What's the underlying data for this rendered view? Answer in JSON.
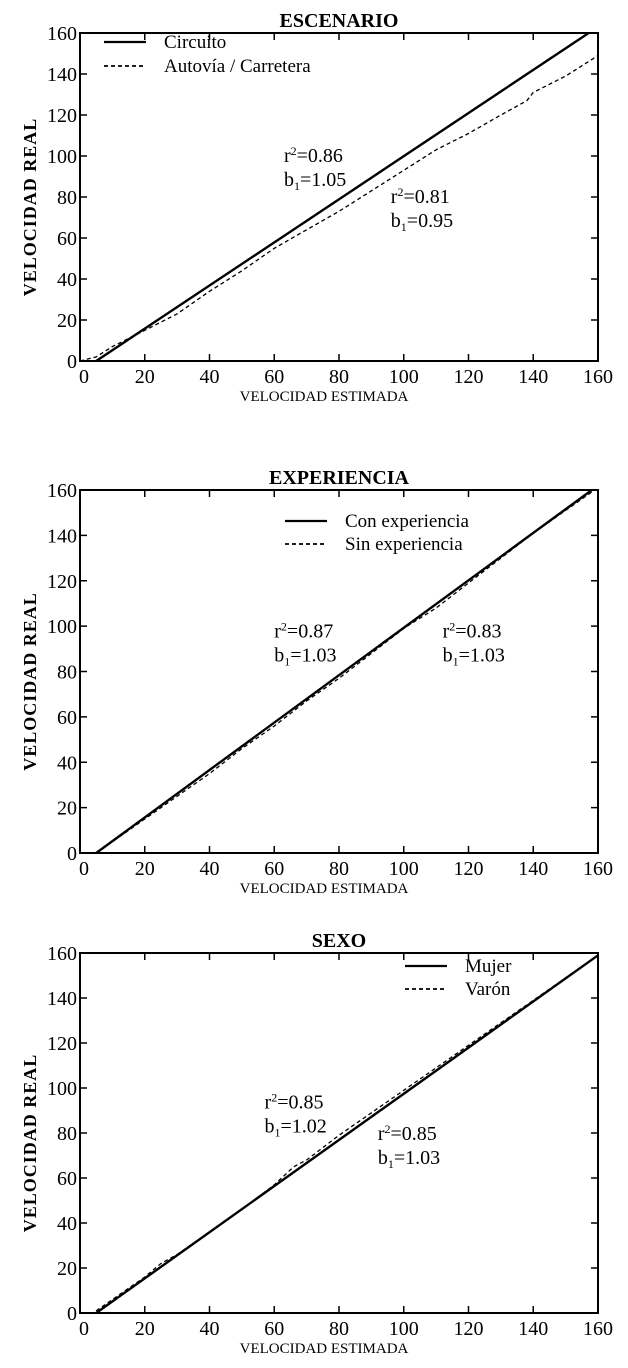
{
  "chart_data": [
    {
      "type": "line",
      "title": "ESCENARIO",
      "xlabel": "VELOCIDAD ESTIMADA",
      "ylabel": "VELOCIDAD REAL",
      "xlim": [
        0,
        160
      ],
      "ylim": [
        0,
        160
      ],
      "xticks": [
        0,
        20,
        40,
        60,
        80,
        100,
        120,
        140,
        160
      ],
      "yticks": [
        0,
        20,
        40,
        60,
        80,
        100,
        120,
        140,
        160
      ],
      "grid": false,
      "legend_position": "top-left",
      "series": [
        {
          "name": "Circuito",
          "style": "solid",
          "x": [
            5,
            160
          ],
          "y": [
            0,
            163
          ]
        },
        {
          "name": "Autovía / Carretera",
          "style": "dashed",
          "x": [
            0,
            5,
            10,
            20,
            30,
            40,
            50,
            60,
            70,
            80,
            85,
            90,
            100,
            110,
            120,
            130,
            138,
            140,
            150,
            160
          ],
          "y": [
            0,
            2,
            7,
            15,
            23,
            34,
            44,
            55,
            64,
            73,
            78,
            83,
            93,
            103,
            111,
            120,
            127,
            131,
            139,
            149
          ]
        }
      ],
      "annotations": [
        {
          "lines": [
            {
              "base": "r",
              "sup": "2",
              "rest": "=0.86"
            },
            {
              "base": "b",
              "sub": "1",
              "rest": "=1.05"
            }
          ],
          "x": 63,
          "y": 97
        },
        {
          "lines": [
            {
              "base": "r",
              "sup": "2",
              "rest": "=0.81"
            },
            {
              "base": "b",
              "sub": "1",
              "rest": "=0.95"
            }
          ],
          "x": 96,
          "y": 77
        }
      ]
    },
    {
      "type": "line",
      "title": "EXPERIENCIA",
      "xlabel": "VELOCIDAD ESTIMADA",
      "ylabel": "VELOCIDAD REAL",
      "xlim": [
        0,
        160
      ],
      "ylim": [
        0,
        160
      ],
      "xticks": [
        0,
        20,
        40,
        60,
        80,
        100,
        120,
        140,
        160
      ],
      "yticks": [
        0,
        20,
        40,
        60,
        80,
        100,
        120,
        140,
        160
      ],
      "grid": false,
      "legend_position": "top-right",
      "series": [
        {
          "name": "Con experiencia",
          "style": "solid",
          "x": [
            5,
            160
          ],
          "y": [
            0,
            162
          ]
        },
        {
          "name": "Sin experiencia",
          "style": "dashed",
          "x": [
            5,
            10,
            20,
            30,
            32,
            40,
            50,
            60,
            70,
            80,
            90,
            100,
            110,
            120,
            130,
            140,
            150,
            160
          ],
          "y": [
            0,
            5,
            15,
            25,
            27,
            35,
            46,
            56,
            67,
            77,
            88,
            99,
            108,
            119,
            130,
            141,
            151,
            161
          ]
        }
      ],
      "annotations": [
        {
          "lines": [
            {
              "base": "r",
              "sup": "2",
              "rest": "=0.87"
            },
            {
              "base": "b",
              "sub": "1",
              "rest": "=1.03"
            }
          ],
          "x": 60,
          "y": 95
        },
        {
          "lines": [
            {
              "base": "r",
              "sup": "2",
              "rest": "=0.83"
            },
            {
              "base": "b",
              "sub": "1",
              "rest": "=1.03"
            }
          ],
          "x": 112,
          "y": 95
        }
      ]
    },
    {
      "type": "line",
      "title": "SEXO",
      "xlabel": "VELOCIDAD ESTIMADA",
      "ylabel": "VELOCIDAD REAL",
      "xlim": [
        0,
        160
      ],
      "ylim": [
        0,
        160
      ],
      "xticks": [
        0,
        20,
        40,
        60,
        80,
        100,
        120,
        140,
        160
      ],
      "yticks": [
        0,
        20,
        40,
        60,
        80,
        100,
        120,
        140,
        160
      ],
      "grid": false,
      "legend_position": "top-right",
      "series": [
        {
          "name": "Mujer",
          "style": "solid",
          "x": [
            5,
            160
          ],
          "y": [
            0,
            159
          ]
        },
        {
          "name": "Varón",
          "style": "dashed",
          "x": [
            5,
            10,
            20,
            25,
            30,
            40,
            50,
            60,
            66,
            70,
            80,
            90,
            100,
            110,
            120,
            130,
            140,
            150,
            160
          ],
          "y": [
            1,
            6,
            16,
            22,
            26,
            36,
            46,
            57,
            65,
            68,
            79,
            89,
            99,
            109,
            119,
            129,
            139,
            149,
            159
          ]
        }
      ],
      "annotations": [
        {
          "lines": [
            {
              "base": "r",
              "sup": "2",
              "rest": "=0.85"
            },
            {
              "base": "b",
              "sub": "1",
              "rest": "=1.02"
            }
          ],
          "x": 57,
          "y": 91
        },
        {
          "lines": [
            {
              "base": "r",
              "sup": "2",
              "rest": "=0.85"
            },
            {
              "base": "b",
              "sub": "1",
              "rest": "=1.03"
            }
          ],
          "x": 92,
          "y": 77
        }
      ]
    }
  ]
}
